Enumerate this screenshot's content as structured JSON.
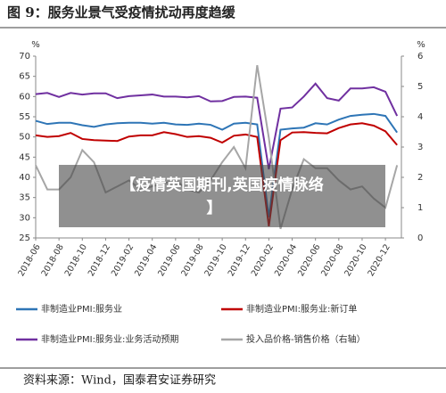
{
  "title": "图 9：服务业景气受疫情扰动再度趋缓",
  "source": "资料来源：Wind，国泰君安证券研究",
  "overlay": {
    "lines": [
      "【疫情英国期刊,英国疫情脉络",
      "】"
    ]
  },
  "chart_data": {
    "type": "line",
    "y_unit": "%",
    "y2_unit": "%",
    "categories": [
      "2018-06",
      null,
      "2018-08",
      null,
      "2018-10",
      null,
      "2018-12",
      null,
      "2019-02",
      null,
      "2019-04",
      null,
      "2019-06",
      null,
      "2019-08",
      null,
      "2019-10",
      null,
      "2019-12",
      null,
      "2020-02",
      null,
      "2020-04",
      null,
      "2020-06",
      null,
      "2020-08",
      null,
      "2020-10",
      null,
      "2020-12",
      null
    ],
    "ylim": [
      25,
      70
    ],
    "yticks": [
      25,
      30,
      35,
      40,
      45,
      50,
      55,
      60,
      65,
      70
    ],
    "y2lim": [
      0,
      6
    ],
    "y2ticks": [
      0,
      1,
      2,
      3,
      4,
      5,
      6
    ],
    "series": [
      {
        "name": "非制造业PMI:服务业",
        "color": "#2e75b6",
        "values": [
          54.0,
          53.2,
          53.5,
          53.5,
          52.9,
          52.5,
          53.1,
          53.4,
          53.5,
          53.5,
          53.3,
          53.5,
          53.1,
          53.0,
          53.3,
          53.0,
          51.8,
          53.3,
          53.5,
          53.1,
          30.1,
          51.8,
          52.1,
          52.3,
          53.4,
          53.1,
          54.3,
          55.2,
          55.5,
          55.7,
          55.2,
          51.1
        ]
      },
      {
        "name": "非制造业PMI:服务业:新订单",
        "color": "#c00000",
        "values": [
          50.4,
          50.0,
          50.2,
          51.0,
          49.5,
          49.2,
          49.1,
          49.0,
          50.1,
          50.4,
          50.4,
          51.2,
          50.7,
          50.0,
          50.2,
          49.8,
          48.6,
          50.3,
          50.6,
          50.0,
          27.9,
          49.2,
          51.1,
          51.2,
          51.0,
          50.9,
          52.2,
          53.1,
          53.4,
          52.8,
          51.4,
          48.0
        ]
      },
      {
        "name": "非制造业PMI:服务业:业务活动预期",
        "color": "#7030a0",
        "values": [
          60.6,
          60.9,
          59.9,
          60.9,
          60.5,
          60.8,
          60.8,
          59.6,
          60.1,
          60.3,
          60.5,
          60.0,
          60.0,
          59.8,
          60.1,
          58.8,
          58.9,
          59.9,
          60.0,
          59.7,
          42.0,
          57.0,
          57.3,
          60.0,
          63.2,
          59.6,
          59.0,
          62.0,
          62.0,
          62.3,
          61.2,
          55.2
        ]
      },
      {
        "name": "投入品价格-销售价格（右轴）",
        "color": "#a6a6a6",
        "axis": "y2",
        "values": [
          2.4,
          1.6,
          1.6,
          2.0,
          2.9,
          2.5,
          1.5,
          1.7,
          1.9,
          1.6,
          1.7,
          1.8,
          1.9,
          1.6,
          1.5,
          1.9,
          2.5,
          3.0,
          2.3,
          5.7,
          3.3,
          0.3,
          1.6,
          2.6,
          2.3,
          2.3,
          1.9,
          1.6,
          1.7,
          1.3,
          1.0,
          2.4
        ]
      }
    ]
  }
}
